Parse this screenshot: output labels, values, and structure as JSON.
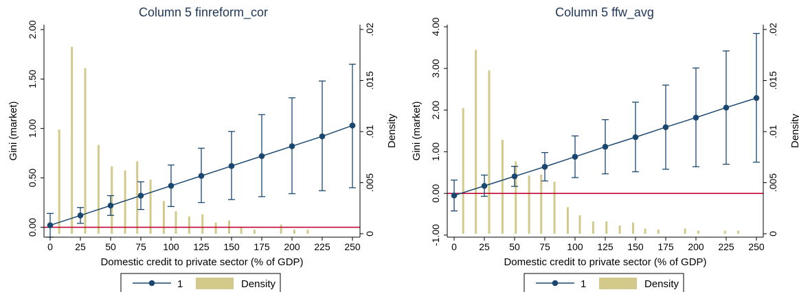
{
  "colors": {
    "series_line": "#1a476f",
    "density_bar": "#d2c98a",
    "zero_line": "#c10534",
    "axis": "#000000",
    "title": "#1e3556"
  },
  "chart_data": [
    {
      "type": "line",
      "title": "Column 5 finreform_cor",
      "xlabel": "Domestic credit to private sector (% of GDP)",
      "ylabel": "Gini (market)",
      "y2label": "Density",
      "xlim": [
        0,
        250
      ],
      "ylim": [
        -0.1,
        2.05
      ],
      "y2lim": [
        0,
        0.02
      ],
      "x_ticks": [
        "0",
        "25",
        "50",
        "75",
        "100",
        "125",
        "150",
        "175",
        "200",
        "225",
        "250"
      ],
      "y_ticks": [
        "0.00",
        "0.50",
        "1.00",
        "1.50",
        "2.00"
      ],
      "y2_ticks": [
        "0",
        ".005",
        ".01",
        ".015",
        ".02"
      ],
      "reference_line_y": 0,
      "x": [
        0,
        25,
        50,
        75,
        100,
        125,
        150,
        175,
        200,
        225,
        250
      ],
      "series": [
        {
          "name": "1",
          "values": [
            0.02,
            0.12,
            0.22,
            0.32,
            0.42,
            0.52,
            0.62,
            0.72,
            0.82,
            0.92,
            1.03
          ],
          "ci_lower": [
            -0.1,
            0.04,
            0.12,
            0.18,
            0.21,
            0.25,
            0.28,
            0.31,
            0.34,
            0.37,
            0.4
          ],
          "ci_upper": [
            0.14,
            0.2,
            0.32,
            0.46,
            0.63,
            0.8,
            0.97,
            1.14,
            1.31,
            1.48,
            1.65
          ]
        }
      ],
      "density": {
        "name": "Density",
        "x": [
          7.5,
          18,
          29,
          40,
          51,
          62,
          72,
          83,
          94,
          104,
          115,
          126,
          137,
          148,
          158,
          169,
          191,
          202,
          213
        ],
        "values": [
          0.0102,
          0.0183,
          0.0162,
          0.0087,
          0.0066,
          0.0062,
          0.0071,
          0.0053,
          0.0032,
          0.0022,
          0.0017,
          0.0019,
          0.0011,
          0.0013,
          0.0007,
          0.0004,
          0.0009,
          0.0004,
          0.0004
        ]
      },
      "legend": [
        "1",
        "Density"
      ],
      "legend_position": "bottom"
    },
    {
      "type": "line",
      "title": "Column 5 ffw_avg",
      "xlabel": "Domestic credit to private sector (% of GDP)",
      "ylabel": "Gini (market)",
      "y2label": "Density",
      "xlim": [
        0,
        250
      ],
      "ylim": [
        -1.05,
        4.05
      ],
      "y2lim": [
        0,
        0.02
      ],
      "x_ticks": [
        "0",
        "25",
        "50",
        "75",
        "100",
        "125",
        "150",
        "175",
        "200",
        "225",
        "250"
      ],
      "y_ticks": [
        "-1.00",
        "0.00",
        "1.00",
        "2.00",
        "3.00",
        "4.00"
      ],
      "y2_ticks": [
        "0",
        ".005",
        ".01",
        ".015",
        ".02"
      ],
      "reference_line_y": 0,
      "x": [
        0,
        25,
        50,
        75,
        100,
        125,
        150,
        175,
        200,
        225,
        250
      ],
      "series": [
        {
          "name": "1",
          "values": [
            -0.05,
            0.18,
            0.41,
            0.64,
            0.88,
            1.12,
            1.35,
            1.59,
            1.82,
            2.06,
            2.29
          ],
          "ci_lower": [
            -0.42,
            -0.07,
            0.17,
            0.3,
            0.38,
            0.47,
            0.52,
            0.58,
            0.64,
            0.7,
            0.75
          ],
          "ci_upper": [
            0.32,
            0.44,
            0.65,
            0.98,
            1.38,
            1.77,
            2.19,
            2.6,
            3.01,
            3.42,
            3.84
          ]
        }
      ],
      "density": {
        "name": "Density",
        "x": [
          7.5,
          18,
          29,
          40,
          51,
          62,
          72,
          83,
          94,
          104,
          115,
          126,
          137,
          148,
          158,
          169,
          191,
          202,
          224,
          235
        ],
        "values": [
          0.0123,
          0.018,
          0.016,
          0.0092,
          0.0071,
          0.0057,
          0.0058,
          0.0051,
          0.0026,
          0.0018,
          0.0012,
          0.0012,
          0.0008,
          0.0011,
          0.0005,
          0.0004,
          0.0005,
          0.0003,
          0.0003,
          0.0003
        ]
      },
      "legend": [
        "1",
        "Density"
      ],
      "legend_position": "bottom"
    }
  ]
}
